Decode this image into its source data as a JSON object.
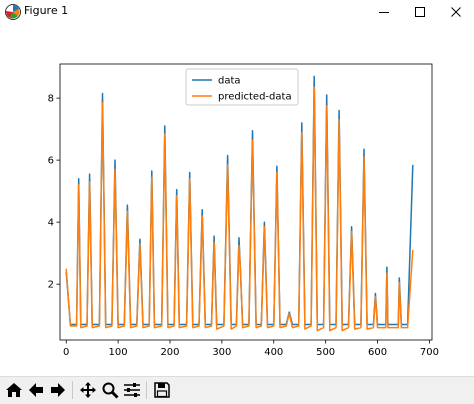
{
  "window": {
    "title": "Figure 1",
    "icons": {
      "app": "matplotlib-logo-icon",
      "minimize": "minimize-icon",
      "maximize": "maximize-icon",
      "close": "close-icon"
    }
  },
  "toolbar": {
    "buttons": [
      {
        "name": "home-button",
        "icon": "home-icon"
      },
      {
        "name": "back-button",
        "icon": "arrow-left-icon"
      },
      {
        "name": "forward-button",
        "icon": "arrow-right-icon"
      },
      {
        "name": "pan-button",
        "icon": "move-icon"
      },
      {
        "name": "zoom-button",
        "icon": "magnifier-icon"
      },
      {
        "name": "configure-subplots-button",
        "icon": "sliders-icon"
      },
      {
        "name": "save-button",
        "icon": "floppy-disk-icon"
      }
    ]
  },
  "chart_data": {
    "type": "line",
    "title": "",
    "xlabel": "",
    "ylabel": "",
    "xlim": [
      -12,
      705
    ],
    "ylim": [
      0.2,
      9.1
    ],
    "xticks": [
      0,
      100,
      200,
      300,
      400,
      500,
      600,
      700
    ],
    "yticks": [
      2,
      4,
      6,
      8
    ],
    "grid": false,
    "legend_position": "upper-center",
    "colors": {
      "data": "#1f77b4",
      "predicted": "#ff7f0e"
    },
    "series": [
      {
        "name": "data",
        "x": [
          0,
          8,
          20,
          24,
          28,
          40,
          45,
          50,
          64,
          70,
          76,
          88,
          94,
          100,
          112,
          118,
          124,
          136,
          142,
          148,
          160,
          165,
          170,
          184,
          190,
          196,
          208,
          213,
          218,
          232,
          238,
          244,
          256,
          262,
          268,
          280,
          285,
          290,
          304,
          311,
          318,
          328,
          333,
          336,
          340,
          352,
          359,
          366,
          376,
          382,
          388,
          400,
          406,
          412,
          424,
          430,
          436,
          448,
          454,
          460,
          472,
          478,
          484,
          496,
          502,
          508,
          520,
          526,
          532,
          544,
          550,
          556,
          568,
          574,
          580,
          592,
          596,
          600,
          616,
          618,
          620,
          640,
          642,
          646,
          658,
          668
        ],
        "y": [
          2.4,
          0.7,
          0.7,
          5.4,
          0.7,
          0.7,
          5.55,
          0.7,
          0.7,
          8.15,
          0.7,
          0.7,
          6.0,
          0.7,
          0.7,
          4.55,
          0.7,
          0.7,
          3.45,
          0.7,
          0.7,
          5.65,
          0.7,
          0.7,
          7.1,
          0.7,
          0.7,
          5.05,
          0.7,
          0.7,
          5.6,
          0.7,
          0.7,
          4.4,
          0.7,
          0.7,
          3.55,
          0.7,
          0.7,
          6.15,
          0.7,
          0.7,
          3.5,
          2.3,
          0.7,
          0.7,
          6.95,
          0.7,
          0.7,
          4.0,
          0.7,
          0.7,
          5.8,
          0.7,
          0.7,
          1.1,
          0.7,
          0.7,
          7.2,
          0.7,
          0.7,
          8.7,
          0.7,
          0.7,
          8.1,
          0.7,
          0.7,
          7.6,
          0.7,
          0.7,
          3.85,
          0.7,
          0.7,
          6.35,
          0.7,
          0.7,
          1.7,
          0.7,
          0.7,
          2.55,
          0.7,
          0.7,
          2.2,
          0.7,
          0.7,
          5.85
        ]
      },
      {
        "name": "predicted-data",
        "x": [
          0,
          8,
          20,
          24,
          28,
          40,
          45,
          50,
          64,
          70,
          76,
          88,
          94,
          100,
          112,
          118,
          124,
          136,
          142,
          148,
          160,
          165,
          170,
          184,
          190,
          196,
          208,
          213,
          218,
          232,
          238,
          244,
          256,
          262,
          268,
          280,
          285,
          290,
          304,
          311,
          318,
          328,
          333,
          336,
          340,
          352,
          359,
          366,
          376,
          382,
          388,
          400,
          406,
          412,
          424,
          430,
          436,
          448,
          454,
          460,
          472,
          478,
          484,
          496,
          502,
          508,
          520,
          526,
          532,
          544,
          550,
          556,
          568,
          574,
          580,
          592,
          596,
          600,
          616,
          618,
          620,
          640,
          642,
          646,
          658,
          668
        ],
        "y": [
          2.5,
          0.65,
          0.65,
          5.2,
          0.6,
          0.65,
          5.3,
          0.6,
          0.65,
          7.85,
          0.6,
          0.65,
          5.7,
          0.6,
          0.65,
          4.35,
          0.6,
          0.65,
          3.3,
          0.6,
          0.65,
          5.45,
          0.6,
          0.65,
          6.85,
          0.6,
          0.65,
          4.85,
          0.6,
          0.65,
          5.4,
          0.6,
          0.65,
          4.2,
          0.6,
          0.65,
          3.35,
          0.55,
          0.65,
          5.85,
          0.55,
          0.65,
          3.25,
          2.4,
          0.6,
          0.65,
          6.65,
          0.6,
          0.65,
          3.85,
          0.6,
          0.65,
          5.6,
          0.6,
          0.65,
          1.05,
          0.6,
          0.65,
          6.9,
          0.55,
          0.65,
          8.35,
          0.5,
          0.6,
          7.75,
          0.5,
          0.6,
          7.3,
          0.5,
          0.6,
          3.7,
          0.55,
          0.6,
          6.1,
          0.55,
          0.6,
          1.6,
          0.6,
          0.6,
          2.35,
          0.6,
          0.6,
          2.05,
          0.6,
          0.6,
          3.1
        ]
      }
    ]
  }
}
